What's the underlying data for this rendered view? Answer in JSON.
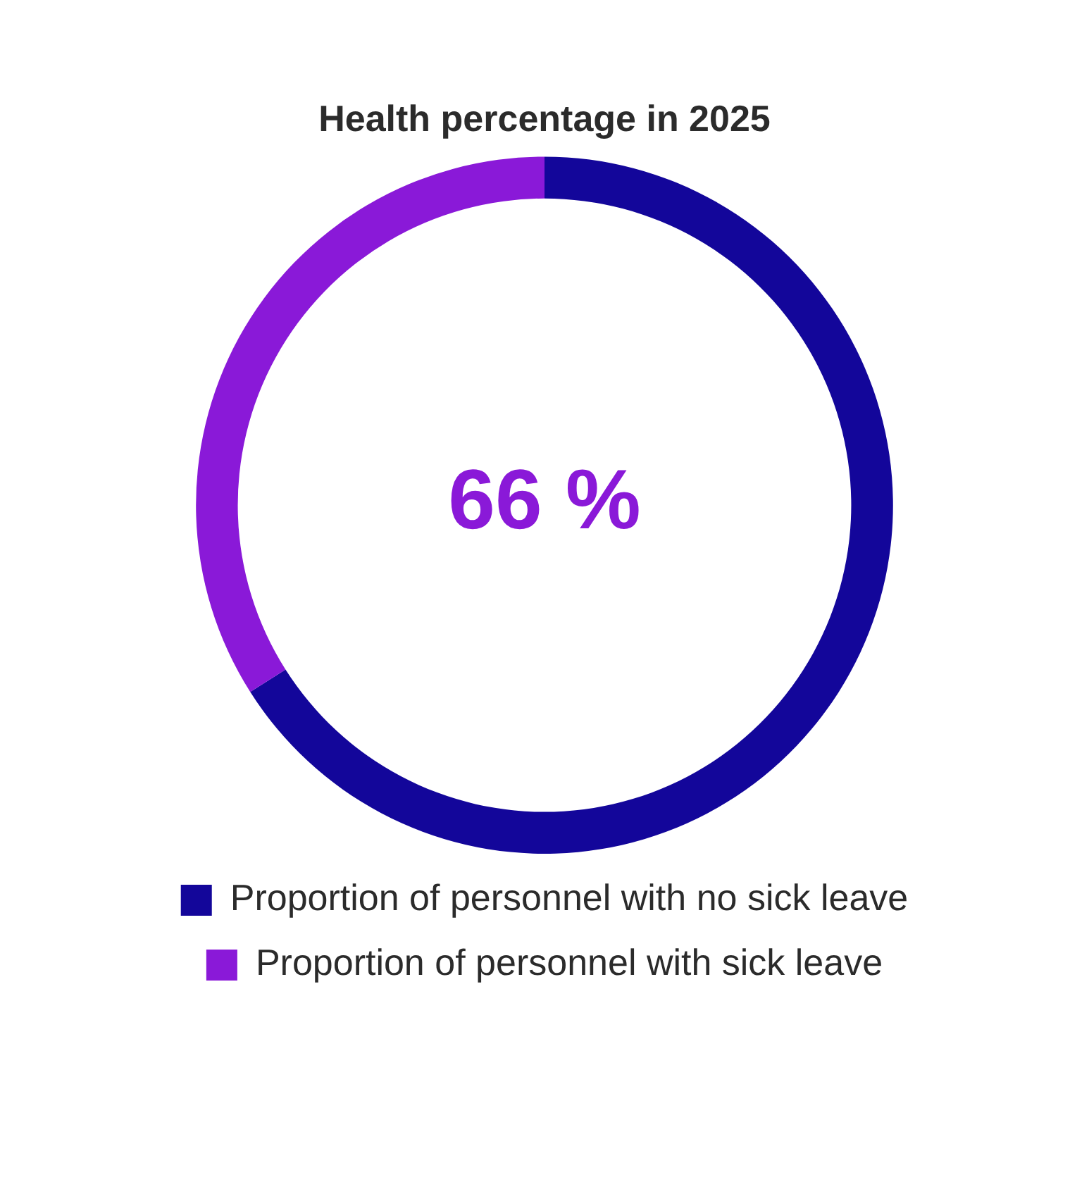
{
  "chart_data": {
    "type": "donut",
    "title": "Health percentage in 2025",
    "categories": [
      "Proportion of personnel with no sick leave",
      "Proportion of personnel with sick leave"
    ],
    "values": [
      66,
      34
    ],
    "colors": [
      "#13069a",
      "#8a19d8"
    ],
    "annotations": [
      "66 %"
    ],
    "legend": "bottom"
  }
}
